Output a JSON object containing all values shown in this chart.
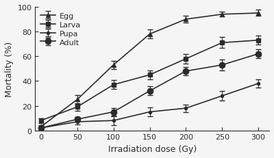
{
  "x": [
    0,
    50,
    100,
    150,
    200,
    250,
    300
  ],
  "egg_y": [
    3,
    25,
    53,
    78,
    90,
    94,
    95
  ],
  "larva_y": [
    8,
    19,
    37,
    45,
    58,
    71,
    73
  ],
  "pupa_y": [
    2,
    7,
    8,
    15,
    18,
    28,
    38
  ],
  "adult_y": [
    2,
    9,
    15,
    32,
    48,
    53,
    62
  ],
  "egg_err": [
    1.5,
    3.5,
    3.5,
    3.5,
    2.5,
    2.0,
    2.5
  ],
  "larva_err": [
    2.0,
    3.0,
    3.5,
    3.5,
    4.0,
    4.5,
    3.5
  ],
  "adult_err": [
    1.0,
    2.0,
    3.0,
    3.5,
    3.5,
    4.5,
    3.5
  ],
  "pupa_err": [
    1.0,
    2.0,
    3.5,
    3.5,
    3.0,
    4.0,
    3.5
  ],
  "xlabel": "Irradiation dose (Gy)",
  "ylabel": "Mortality (%)",
  "ylim": [
    0,
    100
  ],
  "xlim": [
    -8,
    315
  ],
  "xticks": [
    0,
    50,
    100,
    150,
    200,
    250,
    300
  ],
  "yticks": [
    0,
    20,
    40,
    60,
    80,
    100
  ],
  "color": "#2b2b2b",
  "bg_color": "#f5f5f5",
  "legend_labels": [
    "Egg",
    "Larva",
    "Pupa",
    "Adult"
  ],
  "markers": [
    "^",
    "s",
    "o",
    "o"
  ],
  "markersizes": [
    5,
    5,
    3,
    6
  ],
  "linewidth": 1.2,
  "capsize": 3,
  "fontsize_label": 9,
  "fontsize_tick": 8,
  "fontsize_legend": 8
}
